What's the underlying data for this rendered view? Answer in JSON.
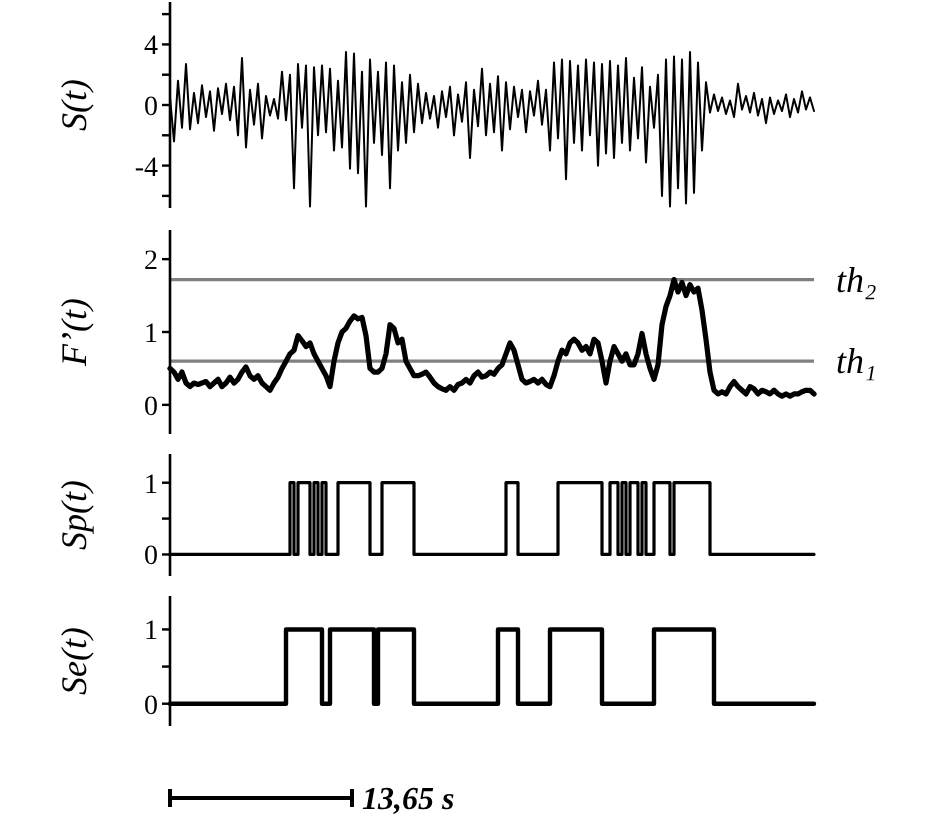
{
  "chart_data": [
    {
      "type": "line",
      "ylabel": "S(t)",
      "color": "#000000",
      "ylim": [
        -6.8,
        6.8
      ],
      "yticks": [
        {
          "value": -6,
          "label": null
        },
        -4,
        {
          "value": -2,
          "label": null
        },
        0,
        {
          "value": 2,
          "label": null
        },
        4,
        {
          "value": 6,
          "label": null
        }
      ],
      "categories": [
        null,
        null,
        null,
        null,
        null,
        null,
        null,
        null,
        null,
        null,
        null,
        null,
        null,
        null,
        null,
        null,
        null,
        null,
        null,
        null,
        null,
        null,
        null,
        null,
        null,
        null,
        null,
        null,
        null,
        null,
        null,
        null,
        null,
        null,
        null,
        null,
        null,
        null,
        null,
        null,
        null,
        null,
        null,
        null,
        null,
        null,
        null,
        null,
        null,
        null,
        null,
        null,
        null,
        null,
        null,
        null,
        null,
        null,
        null,
        null,
        null,
        null,
        null,
        null,
        null,
        null,
        null,
        null,
        null,
        null,
        null,
        null,
        null,
        null,
        null,
        null,
        null,
        null,
        null,
        null,
        null,
        null,
        null,
        null,
        null,
        null,
        null,
        null,
        null,
        null,
        null,
        null,
        null,
        null,
        null,
        null,
        null,
        null,
        null,
        null,
        null,
        null,
        null,
        null,
        null,
        null,
        null,
        null,
        null,
        null,
        null,
        null,
        null,
        null,
        null,
        null,
        null,
        null,
        null,
        null,
        null,
        null,
        null,
        null,
        null,
        null,
        null,
        null,
        null,
        null,
        null,
        null,
        null,
        null,
        null,
        null,
        null,
        null,
        null,
        null,
        null,
        null,
        null,
        null,
        null,
        null,
        null,
        null,
        null,
        null,
        null,
        null,
        null,
        null,
        null,
        null,
        null,
        null,
        null,
        null,
        null,
        null
      ],
      "values": [
        0.5,
        -2.4,
        1.6,
        -1.5,
        2.7,
        -1.6,
        0.8,
        -1.2,
        1.3,
        -0.8,
        0.9,
        -1.7,
        1.1,
        -0.6,
        1.4,
        -1.0,
        1.2,
        -2.0,
        3.1,
        -2.8,
        1.0,
        -1.3,
        1.4,
        -2.2,
        0.6,
        -0.7,
        0.4,
        -0.9,
        2.2,
        -1.0,
        2.0,
        -5.5,
        2.7,
        -1.5,
        2.6,
        -6.7,
        2.5,
        -2.0,
        2.6,
        -1.8,
        2.4,
        -3.0,
        1.6,
        -2.8,
        3.5,
        -4.2,
        3.4,
        -4.5,
        2.2,
        -6.7,
        3.0,
        -2.5,
        2.2,
        -3.3,
        2.8,
        -5.5,
        2.6,
        -3.0,
        1.5,
        -2.5,
        2.0,
        -1.8,
        1.4,
        -1.2,
        0.8,
        -0.9,
        0.6,
        -1.5,
        0.9,
        -0.8,
        1.2,
        -2.0,
        0.7,
        -1.1,
        1.5,
        -3.5,
        1.0,
        -1.4,
        2.4,
        -2.0,
        1.4,
        -1.8,
        1.9,
        -3.0,
        1.5,
        -1.6,
        1.2,
        -0.8,
        1.0,
        -1.8,
        0.9,
        -0.7,
        1.6,
        -1.3,
        1.0,
        -3.0,
        2.8,
        -2.2,
        3.0,
        -4.9,
        2.9,
        -2.5,
        2.6,
        -3.0,
        3.0,
        -2.0,
        2.8,
        -4.0,
        2.7,
        -3.2,
        2.9,
        -3.5,
        2.6,
        -2.5,
        3.1,
        -3.0,
        1.8,
        -2.2,
        2.5,
        -3.8,
        1.2,
        -1.5,
        2.0,
        -6.0,
        3.0,
        -6.7,
        3.2,
        -5.5,
        3.0,
        -6.5,
        3.5,
        -5.8,
        2.8,
        -3.0,
        1.5,
        -0.5,
        0.7,
        -0.4,
        0.5,
        -0.6,
        0.3,
        -0.8,
        1.4,
        -0.3,
        0.6,
        -0.5,
        0.8,
        -0.7,
        0.4,
        -1.2,
        0.5,
        -0.6,
        0.3,
        -0.4,
        0.7,
        -0.8,
        0.4,
        -0.5,
        0.9,
        -0.3,
        0.5,
        -0.4
      ]
    },
    {
      "type": "line",
      "ylabel": "F’(t)",
      "color": "#000000",
      "ylim": [
        -0.4,
        2.4
      ],
      "yticks": [
        0,
        1,
        2
      ],
      "ref_lines": [
        {
          "axis": "y",
          "value": 1.72,
          "label": "th₂",
          "color": "#808080"
        },
        {
          "axis": "y",
          "value": 0.6,
          "label": "th₁",
          "color": "#808080"
        }
      ],
      "categories": [
        null,
        null,
        null,
        null,
        null,
        null,
        null,
        null,
        null,
        null,
        null,
        null,
        null,
        null,
        null,
        null,
        null,
        null,
        null,
        null,
        null,
        null,
        null,
        null,
        null,
        null,
        null,
        null,
        null,
        null,
        null,
        null,
        null,
        null,
        null,
        null,
        null,
        null,
        null,
        null,
        null,
        null,
        null,
        null,
        null,
        null,
        null,
        null,
        null,
        null,
        null,
        null,
        null,
        null,
        null,
        null,
        null,
        null,
        null,
        null,
        null,
        null,
        null,
        null,
        null,
        null,
        null,
        null,
        null,
        null,
        null,
        null,
        null,
        null,
        null,
        null,
        null,
        null,
        null,
        null,
        null,
        null,
        null,
        null,
        null,
        null,
        null,
        null,
        null,
        null,
        null,
        null,
        null,
        null,
        null,
        null,
        null,
        null,
        null,
        null,
        null,
        null,
        null,
        null,
        null,
        null,
        null,
        null,
        null,
        null,
        null,
        null,
        null,
        null,
        null,
        null,
        null,
        null,
        null,
        null,
        null,
        null,
        null,
        null,
        null,
        null,
        null,
        null,
        null,
        null,
        null,
        null,
        null,
        null,
        null,
        null,
        null,
        null,
        null,
        null,
        null,
        null,
        null,
        null,
        null,
        null,
        null,
        null,
        null,
        null,
        null,
        null,
        null,
        null,
        null,
        null,
        null,
        null,
        null,
        null,
        null,
        null
      ],
      "values": [
        0.5,
        0.45,
        0.35,
        0.45,
        0.3,
        0.25,
        0.3,
        0.28,
        0.3,
        0.32,
        0.25,
        0.3,
        0.35,
        0.25,
        0.3,
        0.38,
        0.3,
        0.35,
        0.45,
        0.52,
        0.4,
        0.35,
        0.4,
        0.3,
        0.25,
        0.2,
        0.3,
        0.38,
        0.5,
        0.6,
        0.7,
        0.75,
        0.95,
        0.88,
        0.8,
        0.85,
        0.7,
        0.6,
        0.5,
        0.4,
        0.25,
        0.6,
        0.85,
        1.0,
        1.05,
        1.15,
        1.22,
        1.18,
        1.2,
        0.95,
        0.5,
        0.45,
        0.45,
        0.5,
        0.7,
        1.1,
        1.05,
        0.85,
        0.9,
        0.6,
        0.5,
        0.4,
        0.4,
        0.42,
        0.45,
        0.38,
        0.3,
        0.25,
        0.22,
        0.2,
        0.25,
        0.2,
        0.28,
        0.3,
        0.35,
        0.3,
        0.4,
        0.45,
        0.38,
        0.4,
        0.45,
        0.42,
        0.5,
        0.55,
        0.7,
        0.85,
        0.75,
        0.55,
        0.35,
        0.3,
        0.32,
        0.35,
        0.3,
        0.35,
        0.28,
        0.25,
        0.4,
        0.6,
        0.75,
        0.7,
        0.85,
        0.9,
        0.85,
        0.75,
        0.8,
        0.7,
        0.9,
        0.85,
        0.6,
        0.3,
        0.6,
        0.8,
        0.7,
        0.6,
        0.7,
        0.55,
        0.55,
        0.7,
        0.98,
        0.7,
        0.5,
        0.35,
        0.55,
        1.1,
        1.35,
        1.5,
        1.72,
        1.55,
        1.68,
        1.5,
        1.65,
        1.55,
        1.6,
        1.3,
        0.9,
        0.45,
        0.2,
        0.15,
        0.18,
        0.15,
        0.25,
        0.32,
        0.25,
        0.2,
        0.15,
        0.25,
        0.22,
        0.15,
        0.2,
        0.18,
        0.15,
        0.2,
        0.15,
        0.12,
        0.15,
        0.12,
        0.15,
        0.15,
        0.18,
        0.2,
        0.2,
        0.15
      ]
    },
    {
      "type": "step",
      "ylabel": "Sp(t)",
      "color": "#000000",
      "ylim": [
        -0.3,
        1.4
      ],
      "yticks": [
        0,
        {
          "value": 0.5,
          "label": null
        },
        1
      ],
      "categories": [
        null,
        null,
        null,
        null,
        null,
        null,
        null,
        null,
        null,
        null,
        null,
        null,
        null,
        null,
        null,
        null,
        null,
        null,
        null,
        null,
        null,
        null,
        null,
        null,
        null,
        null,
        null,
        null,
        null,
        null,
        null,
        null,
        null,
        null,
        null,
        null,
        null,
        null,
        null,
        null,
        null,
        null,
        null,
        null,
        null,
        null,
        null,
        null,
        null,
        null,
        null,
        null,
        null,
        null,
        null,
        null,
        null,
        null,
        null,
        null,
        null,
        null,
        null,
        null,
        null,
        null,
        null,
        null,
        null,
        null,
        null,
        null,
        null,
        null,
        null,
        null,
        null,
        null,
        null,
        null,
        null,
        null,
        null,
        null,
        null,
        null,
        null,
        null,
        null,
        null,
        null,
        null,
        null,
        null,
        null,
        null,
        null,
        null,
        null,
        null,
        null,
        null,
        null,
        null,
        null,
        null,
        null,
        null,
        null,
        null,
        null,
        null,
        null,
        null,
        null,
        null,
        null,
        null,
        null,
        null,
        null,
        null,
        null,
        null,
        null,
        null,
        null,
        null,
        null,
        null,
        null,
        null,
        null,
        null,
        null,
        null,
        null,
        null,
        null,
        null,
        null,
        null,
        null,
        null,
        null,
        null,
        null,
        null,
        null,
        null,
        null,
        null,
        null,
        null,
        null,
        null,
        null,
        null,
        null,
        null,
        null,
        null
      ],
      "values": [
        0,
        0,
        0,
        0,
        0,
        0,
        0,
        0,
        0,
        0,
        0,
        0,
        0,
        0,
        0,
        0,
        0,
        0,
        0,
        0,
        0,
        0,
        0,
        0,
        0,
        0,
        0,
        0,
        0,
        0,
        1,
        0,
        1,
        1,
        1,
        0,
        1,
        0,
        1,
        0,
        0,
        0,
        1,
        1,
        1,
        1,
        1,
        1,
        1,
        1,
        0,
        0,
        0,
        1,
        1,
        1,
        1,
        1,
        1,
        1,
        1,
        0,
        0,
        0,
        0,
        0,
        0,
        0,
        0,
        0,
        0,
        0,
        0,
        0,
        0,
        0,
        0,
        0,
        0,
        0,
        0,
        0,
        0,
        0,
        1,
        1,
        1,
        0,
        0,
        0,
        0,
        0,
        0,
        0,
        0,
        0,
        0,
        1,
        1,
        1,
        1,
        1,
        1,
        1,
        1,
        1,
        1,
        1,
        0,
        0,
        1,
        1,
        0,
        1,
        0,
        1,
        1,
        0,
        1,
        0,
        0,
        1,
        1,
        1,
        1,
        0,
        1,
        1,
        1,
        1,
        1,
        1,
        1,
        1,
        1,
        0,
        0,
        0,
        0,
        0,
        0,
        0,
        0,
        0,
        0,
        0,
        0,
        0,
        0,
        0,
        0,
        0,
        0,
        0,
        0,
        0,
        0,
        0,
        0,
        0,
        0,
        0
      ]
    },
    {
      "type": "step",
      "ylabel": "Se(t)",
      "color": "#000000",
      "ylim": [
        -0.3,
        1.45
      ],
      "yticks": [
        0,
        {
          "value": 0.5,
          "label": null
        },
        1
      ],
      "annotations": [
        "13,65 s"
      ],
      "categories": [
        null,
        null,
        null,
        null,
        null,
        null,
        null,
        null,
        null,
        null,
        null,
        null,
        null,
        null,
        null,
        null,
        null,
        null,
        null,
        null,
        null,
        null,
        null,
        null,
        null,
        null,
        null,
        null,
        null,
        null,
        null,
        null,
        null,
        null,
        null,
        null,
        null,
        null,
        null,
        null,
        null,
        null,
        null,
        null,
        null,
        null,
        null,
        null,
        null,
        null,
        null,
        null,
        null,
        null,
        null,
        null,
        null,
        null,
        null,
        null,
        null,
        null,
        null,
        null,
        null,
        null,
        null,
        null,
        null,
        null,
        null,
        null,
        null,
        null,
        null,
        null,
        null,
        null,
        null,
        null,
        null,
        null,
        null,
        null,
        null,
        null,
        null,
        null,
        null,
        null,
        null,
        null,
        null,
        null,
        null,
        null,
        null,
        null,
        null,
        null,
        null,
        null,
        null,
        null,
        null,
        null,
        null,
        null,
        null,
        null,
        null,
        null,
        null,
        null,
        null,
        null,
        null,
        null,
        null,
        null,
        null,
        null,
        null,
        null,
        null,
        null,
        null,
        null,
        null,
        null,
        null,
        null,
        null,
        null,
        null,
        null,
        null,
        null,
        null,
        null,
        null,
        null,
        null,
        null,
        null,
        null,
        null,
        null,
        null,
        null,
        null,
        null,
        null,
        null,
        null,
        null,
        null,
        null,
        null,
        null,
        null,
        null
      ],
      "values": [
        0,
        0,
        0,
        0,
        0,
        0,
        0,
        0,
        0,
        0,
        0,
        0,
        0,
        0,
        0,
        0,
        0,
        0,
        0,
        0,
        0,
        0,
        0,
        0,
        0,
        0,
        0,
        0,
        0,
        1,
        1,
        1,
        1,
        1,
        1,
        1,
        1,
        1,
        0,
        0,
        1,
        1,
        1,
        1,
        1,
        1,
        1,
        1,
        1,
        1,
        1,
        0,
        1,
        1,
        1,
        1,
        1,
        1,
        1,
        1,
        1,
        0,
        0,
        0,
        0,
        0,
        0,
        0,
        0,
        0,
        0,
        0,
        0,
        0,
        0,
        0,
        0,
        0,
        0,
        0,
        0,
        0,
        1,
        1,
        1,
        1,
        1,
        0,
        0,
        0,
        0,
        0,
        0,
        0,
        0,
        1,
        1,
        1,
        1,
        1,
        1,
        1,
        1,
        1,
        1,
        1,
        1,
        1,
        0,
        0,
        0,
        0,
        0,
        0,
        0,
        0,
        0,
        0,
        0,
        0,
        0,
        1,
        1,
        1,
        1,
        1,
        1,
        1,
        1,
        1,
        1,
        1,
        1,
        1,
        1,
        1,
        0,
        0,
        0,
        0,
        0,
        0,
        0,
        0,
        0,
        0,
        0,
        0,
        0,
        0,
        0,
        0,
        0,
        0,
        0,
        0,
        0,
        0,
        0,
        0,
        0,
        0
      ]
    }
  ]
}
